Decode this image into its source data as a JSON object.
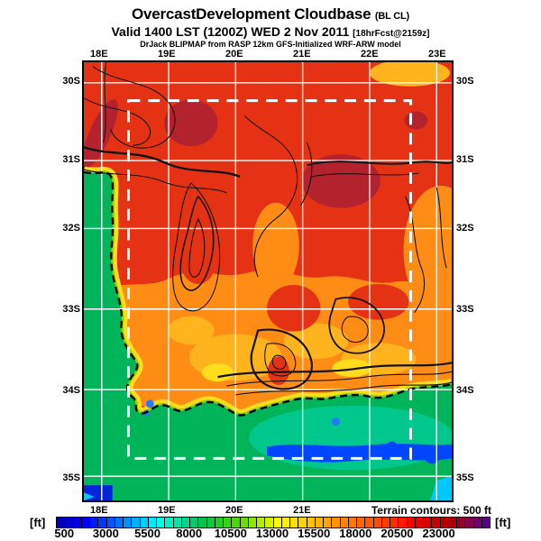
{
  "title": {
    "main": "OvercastDevelopment Cloudbase",
    "suffix": "(BL CL)",
    "valid": "Valid 1400 LST (1200Z) WED 2 Nov 2011",
    "fcst": "[18hrFcst@2159z]",
    "model": "DrJack BLIPMAP from RASP 12km GFS-Initialized WRF-ARW model"
  },
  "map": {
    "top_labels": [
      "18E",
      "19E",
      "20E",
      "21E",
      "22E",
      "23E"
    ],
    "bottom_labels": [
      "18E",
      "19E",
      "20E",
      "21E"
    ],
    "left_labels": [
      "30S",
      "31S",
      "32S",
      "33S",
      "34S",
      "35S"
    ],
    "right_labels": [
      "30S",
      "31S",
      "32S",
      "33S",
      "34S",
      "35S"
    ],
    "terrain_note": "Terrain contours: 500 ft",
    "colors": {
      "red": "#e63214",
      "dark_red": "#b4232d",
      "orange": "#ff8c14",
      "amber": "#ffb41e",
      "yellow": "#ffdc1e",
      "yellow_green": "#96d200",
      "green": "#00b45a",
      "teal": "#00c88c",
      "blue": "#0046ff",
      "mid_blue": "#2878ff",
      "dark_blue": "#0523dc",
      "cyan": "#00c8ff",
      "contour": "#141414",
      "grid": "#ffffff"
    }
  },
  "colorbar": {
    "unit_left": "[ft]",
    "unit_right": "[ft]",
    "labels": [
      "500",
      "3000",
      "5500",
      "8000",
      "10500",
      "13000",
      "15500",
      "18000",
      "20500",
      "23000"
    ],
    "colors": [
      "#0000b4",
      "#0000cd",
      "#0000e6",
      "#0000ff",
      "#0019ff",
      "#0037ff",
      "#0055ff",
      "#0073ff",
      "#0091ff",
      "#00afff",
      "#00cdff",
      "#00ebff",
      "#00ffeb",
      "#00f0c8",
      "#00e6aa",
      "#00d78c",
      "#00cd6e",
      "#00c350",
      "#0fc83c",
      "#23cd28",
      "#37d214",
      "#4bd700",
      "#6edc00",
      "#91e600",
      "#b4eb00",
      "#d7f000",
      "#fffa00",
      "#fff000",
      "#ffe100",
      "#ffd200",
      "#ffc300",
      "#ffb400",
      "#ffa500",
      "#ff9600",
      "#ff8700",
      "#ff7800",
      "#ff6900",
      "#ff5a00",
      "#ff4b00",
      "#ff3c00",
      "#ff2d00",
      "#ff1900",
      "#f50500",
      "#e60000",
      "#d70000",
      "#c80000",
      "#b90000",
      "#aa000f",
      "#96002d",
      "#82004b",
      "#6e0069",
      "#5a0087"
    ]
  },
  "chart_data": {
    "type": "heatmap",
    "title": "OvercastDevelopment Cloudbase (BL CL)",
    "units": "ft",
    "colorbar_ticks": [
      500,
      3000,
      5500,
      8000,
      10500,
      13000,
      15500,
      18000,
      20500,
      23000
    ],
    "colorbar_step_ft": 500,
    "lon_labels": [
      "18E",
      "19E",
      "20E",
      "21E",
      "22E",
      "23E"
    ],
    "lat_labels": [
      "30S",
      "31S",
      "32S",
      "33S",
      "34S",
      "35S"
    ],
    "terrain_contour_interval_ft": 500,
    "notes": "High cloudbase (red ~18000-23000 ft) over northern interior; orange ~13000-16000 ft mid; green ~8000 ft over coastal waters; blue patches ~3000-5000 ft along south coast"
  }
}
